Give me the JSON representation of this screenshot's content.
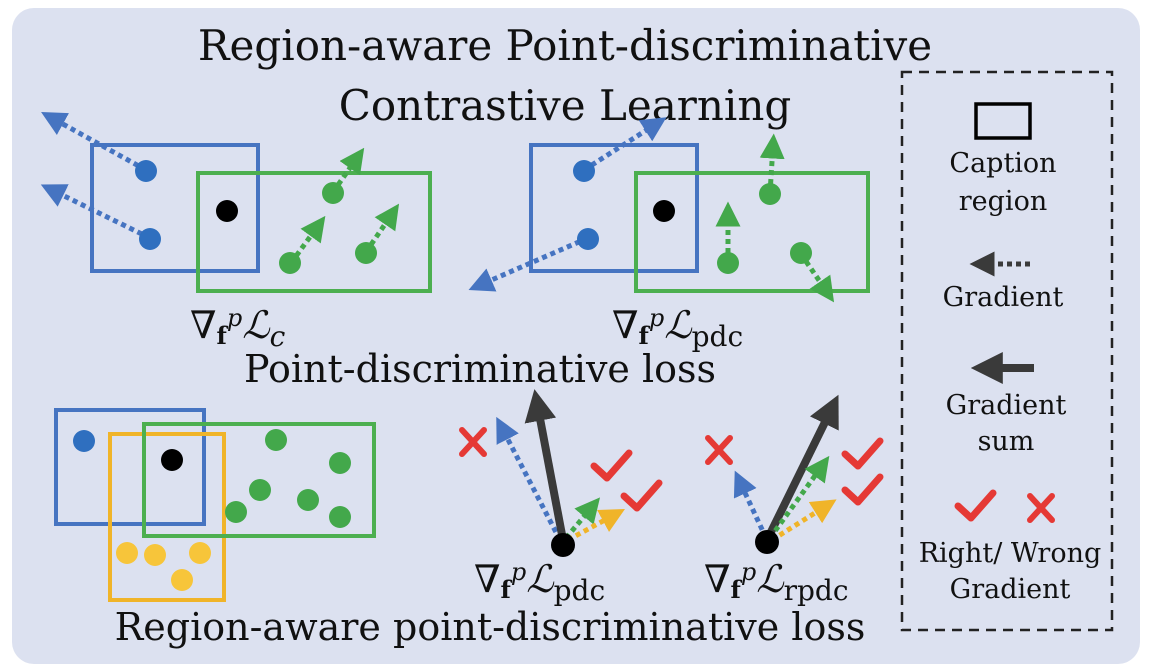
{
  "colors": {
    "background": "#dce1f0",
    "blue": "#4674c1",
    "blue_point": "#2f6fbf",
    "green": "#4caf50",
    "green_point": "#43a84b",
    "yellow": "#f0b429",
    "yellow_point": "#f7c53a",
    "black": "#000000",
    "gradient_sum": "#3a3a3a",
    "wrong": "#e53935",
    "right": "#e53935"
  },
  "title": {
    "line1": "Region-aware Point-discriminative",
    "line2": "Contrastive Learning"
  },
  "top_panels": {
    "left_formula": {
      "nabla": "∇",
      "sub": "f",
      "sup": "p",
      "loss": "ℒ",
      "loss_sub": "c"
    },
    "right_formula": {
      "nabla": "∇",
      "sub": "f",
      "sup": "p",
      "loss": "ℒ",
      "loss_sub": "pdc"
    },
    "section_label": "Point-discriminative loss"
  },
  "bottom_panels": {
    "left_formula": {
      "nabla": "∇",
      "sub": "f",
      "sup": "p",
      "loss": "ℒ",
      "loss_sub": "pdc"
    },
    "right_formula": {
      "nabla": "∇",
      "sub": "f",
      "sup": "p",
      "loss": "ℒ",
      "loss_sub": "rpdc"
    },
    "section_label": "Region-aware point-discriminative loss"
  },
  "legend": {
    "caption_line1": "Caption",
    "caption_line2": "region",
    "gradient": "Gradient",
    "gradient_sum_line1": "Gradient",
    "gradient_sum_line2": "sum",
    "right_wrong_line1": "Right/ Wrong",
    "right_wrong_line2": "Gradient",
    "icons": [
      "rectangle-icon",
      "dotted-arrow-icon",
      "solid-arrow-icon",
      "check-icon",
      "cross-icon"
    ]
  }
}
